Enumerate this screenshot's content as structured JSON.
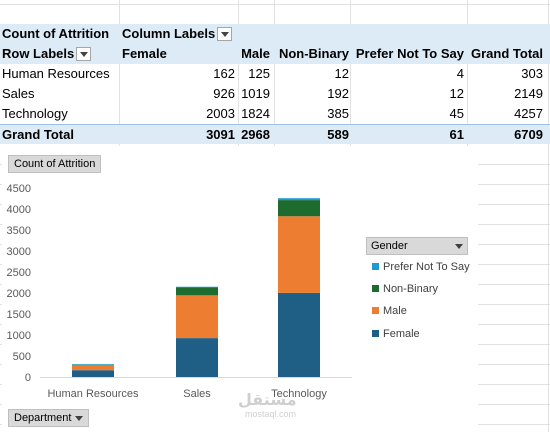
{
  "pivot": {
    "value_field": "Count of Attrition",
    "column_labels": "Column Labels",
    "row_labels": "Row Labels",
    "columns": [
      "Female",
      "Male",
      "Non-Binary",
      "Prefer Not To Say",
      "Grand Total"
    ],
    "rows": [
      {
        "label": "Human Resources",
        "values": [
          "162",
          "125",
          "12",
          "4",
          "303"
        ]
      },
      {
        "label": "Sales",
        "values": [
          "926",
          "1019",
          "192",
          "12",
          "2149"
        ]
      },
      {
        "label": "Technology",
        "values": [
          "2003",
          "1824",
          "385",
          "45",
          "4257"
        ]
      }
    ],
    "total": {
      "label": "Grand Total",
      "values": [
        "3091",
        "2968",
        "589",
        "61",
        "6709"
      ]
    }
  },
  "chart_data": {
    "type": "bar",
    "stacked": true,
    "value_field_button": "Count of Attrition",
    "axis_field_button": "Department",
    "legend_title": "Gender",
    "categories": [
      "Human Resources",
      "Sales",
      "Technology"
    ],
    "series": [
      {
        "name": "Female",
        "values": [
          162,
          926,
          2003
        ],
        "color": "#1f5f86"
      },
      {
        "name": "Male",
        "values": [
          125,
          1019,
          1824
        ],
        "color": "#ed7d31"
      },
      {
        "name": "Non-Binary",
        "values": [
          12,
          192,
          385
        ],
        "color": "#1d6b2f"
      },
      {
        "name": "Prefer Not To Say",
        "values": [
          4,
          12,
          45
        ],
        "color": "#1b9bd1"
      }
    ],
    "legend_order": [
      "Prefer Not To Say",
      "Non-Binary",
      "Male",
      "Female"
    ],
    "ylim": [
      0,
      4500
    ],
    "yticks": [
      0,
      500,
      1000,
      1500,
      2000,
      2500,
      3000,
      3500,
      4000,
      4500
    ],
    "legend_placement": "right",
    "grid": false
  },
  "watermark": {
    "text": "مستقل",
    "sub": "mostaql.com"
  }
}
